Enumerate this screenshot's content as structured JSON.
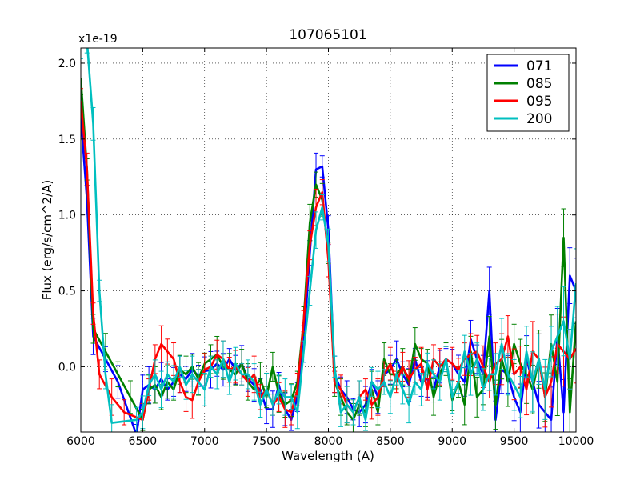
{
  "chart_data": {
    "type": "line",
    "title": "107065101",
    "xlabel": "Wavelength (A)",
    "ylabel": "Flux (erg/s/cm^2/A)",
    "y_offset_text": "x1e-19",
    "xlim": [
      6000,
      10000
    ],
    "ylim": [
      -0.43,
      2.1
    ],
    "x_ticks": [
      6000,
      6500,
      7000,
      7500,
      8000,
      8500,
      9000,
      9500,
      10000
    ],
    "x_tick_labels": [
      "6000",
      "6500",
      "7000",
      "7500",
      "8000",
      "8500",
      "9000",
      "9500",
      "10000"
    ],
    "y_ticks": [
      0.0,
      0.5,
      1.0,
      1.5,
      2.0
    ],
    "y_tick_labels": [
      "0.0",
      "0.5",
      "1.0",
      "1.5",
      "2.0"
    ],
    "grid": true,
    "legend_position": "top-right",
    "series": [
      {
        "name": "071",
        "color": "#0000ff",
        "x": [
          6000,
          6050,
          6100,
          6200,
          6300,
          6450,
          6500,
          6550,
          6600,
          6650,
          6700,
          6750,
          6800,
          6850,
          6900,
          6950,
          7000,
          7050,
          7100,
          7150,
          7200,
          7250,
          7300,
          7350,
          7400,
          7450,
          7500,
          7550,
          7600,
          7650,
          7700,
          7750,
          7800,
          7850,
          7900,
          7950,
          8000,
          8050,
          8100,
          8150,
          8200,
          8250,
          8300,
          8350,
          8400,
          8450,
          8500,
          8550,
          8600,
          8650,
          8700,
          8750,
          8800,
          8850,
          8900,
          8950,
          9000,
          9050,
          9100,
          9150,
          9200,
          9250,
          9300,
          9350,
          9400,
          9450,
          9500,
          9550,
          9600,
          9650,
          9700,
          9750,
          9800,
          9850,
          9900,
          9950,
          10000
        ],
        "y": [
          1.65,
          1.1,
          0.2,
          0.05,
          -0.1,
          -0.45,
          -0.15,
          -0.12,
          -0.15,
          -0.08,
          -0.15,
          -0.1,
          -0.05,
          -0.08,
          -0.02,
          -0.06,
          -0.03,
          -0.02,
          0.02,
          -0.02,
          0.05,
          -0.02,
          0.02,
          -0.08,
          -0.12,
          -0.15,
          -0.28,
          -0.28,
          -0.12,
          -0.28,
          -0.35,
          -0.2,
          0.15,
          0.75,
          1.3,
          1.32,
          0.9,
          -0.05,
          -0.15,
          -0.2,
          -0.28,
          -0.3,
          -0.25,
          -0.1,
          -0.2,
          -0.05,
          -0.02,
          0.05,
          -0.05,
          -0.12,
          0.05,
          -0.1,
          -0.08,
          -0.15,
          0.0,
          0.05,
          0.02,
          -0.05,
          -0.1,
          0.18,
          0.05,
          -0.05,
          0.5,
          -0.35,
          -0.02,
          -0.05,
          -0.2,
          -0.3,
          0.05,
          -0.1,
          -0.25,
          -0.3,
          -0.35,
          0.2,
          -0.3,
          0.6,
          0.5
        ]
      },
      {
        "name": "085",
        "color": "#008000",
        "x": [
          6000,
          6050,
          6100,
          6200,
          6300,
          6400,
          6500,
          6550,
          6600,
          6650,
          6700,
          6750,
          6800,
          6850,
          6900,
          6950,
          7000,
          7050,
          7100,
          7150,
          7200,
          7250,
          7300,
          7350,
          7400,
          7450,
          7500,
          7550,
          7600,
          7650,
          7700,
          7750,
          7800,
          7850,
          7900,
          7950,
          8000,
          8050,
          8100,
          8150,
          8200,
          8250,
          8300,
          8350,
          8400,
          8450,
          8500,
          8550,
          8600,
          8650,
          8700,
          8750,
          8800,
          8850,
          8900,
          8950,
          9000,
          9050,
          9100,
          9150,
          9200,
          9250,
          9300,
          9350,
          9400,
          9450,
          9500,
          9550,
          9600,
          9650,
          9700,
          9750,
          9800,
          9850,
          9900,
          9950,
          10000
        ],
        "y": [
          1.9,
          1.3,
          0.25,
          0.1,
          -0.05,
          -0.2,
          -0.35,
          -0.15,
          -0.12,
          -0.2,
          -0.1,
          -0.15,
          -0.02,
          -0.05,
          0.0,
          -0.08,
          0.02,
          0.05,
          0.08,
          0.0,
          -0.02,
          -0.05,
          0.02,
          -0.1,
          -0.15,
          -0.08,
          -0.2,
          0.0,
          -0.18,
          -0.25,
          -0.22,
          -0.1,
          0.3,
          0.95,
          1.2,
          1.1,
          0.75,
          -0.1,
          -0.2,
          -0.3,
          -0.35,
          -0.25,
          -0.3,
          -0.15,
          -0.3,
          0.05,
          -0.05,
          -0.05,
          0.0,
          -0.1,
          0.15,
          0.05,
          0.02,
          -0.2,
          -0.05,
          0.05,
          -0.22,
          -0.1,
          -0.25,
          0.1,
          -0.2,
          -0.15,
          0.2,
          -0.25,
          0.05,
          -0.1,
          0.15,
          0.02,
          -0.05,
          -0.15,
          0.05,
          -0.2,
          0.15,
          -0.1,
          0.85,
          -0.3,
          0.3
        ]
      },
      {
        "name": "095",
        "color": "#ff0000",
        "x": [
          6000,
          6050,
          6100,
          6150,
          6250,
          6350,
          6500,
          6550,
          6600,
          6650,
          6700,
          6750,
          6800,
          6850,
          6900,
          6950,
          7000,
          7050,
          7100,
          7150,
          7200,
          7250,
          7300,
          7350,
          7400,
          7450,
          7500,
          7550,
          7600,
          7650,
          7700,
          7750,
          7800,
          7850,
          7900,
          7950,
          8000,
          8050,
          8100,
          8150,
          8200,
          8250,
          8300,
          8350,
          8400,
          8450,
          8500,
          8550,
          8600,
          8650,
          8700,
          8750,
          8800,
          8850,
          8900,
          8950,
          9000,
          9050,
          9100,
          9150,
          9200,
          9250,
          9300,
          9350,
          9400,
          9450,
          9500,
          9550,
          9600,
          9650,
          9700,
          9750,
          9800,
          9850,
          9900,
          9950,
          10000
        ],
        "y": [
          1.75,
          1.3,
          0.35,
          -0.05,
          -0.2,
          -0.3,
          -0.35,
          -0.15,
          0.05,
          0.15,
          0.1,
          0.05,
          -0.1,
          -0.2,
          -0.22,
          -0.1,
          -0.02,
          0.0,
          0.08,
          0.05,
          -0.02,
          0.0,
          -0.05,
          -0.1,
          -0.05,
          -0.2,
          -0.15,
          -0.25,
          -0.2,
          -0.28,
          -0.3,
          -0.15,
          0.3,
          0.8,
          1.05,
          1.15,
          0.7,
          -0.1,
          -0.15,
          -0.25,
          -0.3,
          -0.2,
          -0.15,
          -0.25,
          -0.2,
          -0.05,
          0.02,
          -0.1,
          0.0,
          -0.08,
          -0.02,
          0.02,
          -0.15,
          0.05,
          0.0,
          0.05,
          0.02,
          -0.02,
          0.05,
          0.08,
          0.1,
          0.0,
          -0.1,
          0.02,
          0.05,
          0.2,
          -0.05,
          0.0,
          -0.15,
          0.1,
          0.05,
          -0.2,
          -0.1,
          0.15,
          0.1,
          0.05,
          0.12
        ]
      },
      {
        "name": "200",
        "color": "#00bfbf",
        "x": [
          6000,
          6050,
          6100,
          6150,
          6200,
          6250,
          6450,
          6500,
          6550,
          6600,
          6650,
          6700,
          6750,
          6800,
          6850,
          6900,
          6950,
          7000,
          7050,
          7100,
          7150,
          7200,
          7250,
          7300,
          7350,
          7400,
          7450,
          7500,
          7550,
          7600,
          7650,
          7700,
          7750,
          7800,
          7850,
          7900,
          7950,
          8000,
          8050,
          8100,
          8150,
          8200,
          8250,
          8300,
          8350,
          8400,
          8450,
          8500,
          8550,
          8600,
          8650,
          8700,
          8750,
          8800,
          8850,
          8900,
          8950,
          9000,
          9050,
          9100,
          9150,
          9200,
          9250,
          9300,
          9350,
          9400,
          9450,
          9500,
          9550,
          9600,
          9650,
          9700,
          9750,
          9800,
          9850,
          9900,
          9950,
          10000
        ],
        "y": [
          2.15,
          2.15,
          1.6,
          0.5,
          -0.05,
          -0.37,
          -0.35,
          -0.3,
          -0.12,
          -0.05,
          -0.15,
          -0.05,
          -0.1,
          0.0,
          -0.12,
          -0.05,
          -0.1,
          -0.15,
          0.0,
          -0.05,
          0.05,
          -0.1,
          0.02,
          -0.05,
          -0.05,
          -0.1,
          -0.25,
          -0.15,
          -0.25,
          -0.15,
          -0.2,
          -0.2,
          -0.3,
          0.1,
          0.5,
          0.9,
          1.05,
          0.8,
          0.0,
          -0.3,
          -0.25,
          -0.3,
          -0.2,
          -0.35,
          -0.1,
          -0.15,
          -0.1,
          -0.2,
          -0.05,
          -0.15,
          -0.25,
          -0.1,
          -0.15,
          0.02,
          -0.05,
          -0.1,
          0.05,
          -0.2,
          -0.1,
          0.1,
          -0.05,
          0.05,
          -0.15,
          -0.05,
          -0.05,
          0.15,
          -0.05,
          -0.12,
          -0.2,
          0.1,
          -0.1,
          0.05,
          -0.15,
          0.1,
          0.2,
          0.3,
          0.05,
          0.55
        ]
      }
    ]
  }
}
